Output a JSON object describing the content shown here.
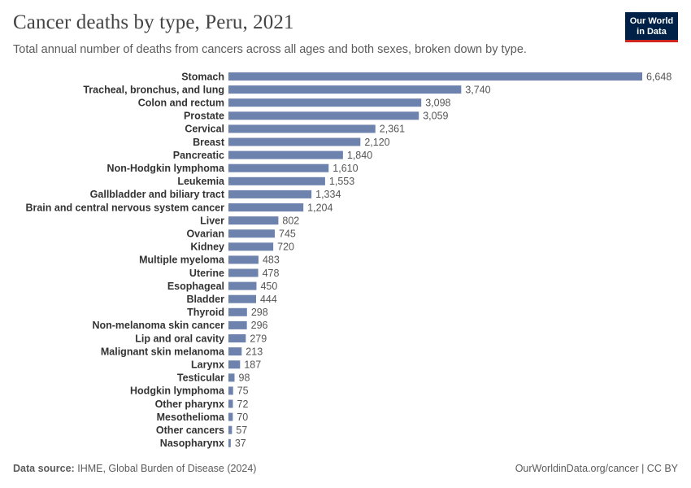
{
  "header": {
    "title": "Cancer deaths by type, Peru, 2021",
    "subtitle": "Total annual number of deaths from cancers across all ages and both sexes, broken down by type.",
    "logo_line1": "Our World",
    "logo_line2": "in Data"
  },
  "footer": {
    "source_label": "Data source:",
    "source_text": "IHME, Global Burden of Disease (2024)",
    "right_text": "OurWorldinData.org/cancer | CC BY"
  },
  "colors": {
    "bar": "#6d83ad",
    "label": "#333333",
    "value": "#555555"
  },
  "chart_data": {
    "type": "bar",
    "orientation": "horizontal",
    "title": "Cancer deaths by type, Peru, 2021",
    "categories": [
      "Stomach",
      "Tracheal, bronchus, and lung",
      "Colon and rectum",
      "Prostate",
      "Cervical",
      "Breast",
      "Pancreatic",
      "Non-Hodgkin lymphoma",
      "Leukemia",
      "Gallbladder and biliary tract",
      "Brain and central nervous system cancer",
      "Liver",
      "Ovarian",
      "Kidney",
      "Multiple myeloma",
      "Uterine",
      "Esophageal",
      "Bladder",
      "Thyroid",
      "Non-melanoma skin cancer",
      "Lip and oral cavity",
      "Malignant skin melanoma",
      "Larynx",
      "Testicular",
      "Hodgkin lymphoma",
      "Other pharynx",
      "Mesothelioma",
      "Other cancers",
      "Nasopharynx"
    ],
    "values": [
      6648,
      3740,
      3098,
      3059,
      2361,
      2120,
      1840,
      1610,
      1553,
      1334,
      1204,
      802,
      745,
      720,
      483,
      478,
      450,
      444,
      298,
      296,
      279,
      213,
      187,
      98,
      75,
      72,
      70,
      57,
      37
    ],
    "value_labels": [
      "6,648",
      "3,740",
      "3,098",
      "3,059",
      "2,361",
      "2,120",
      "1,840",
      "1,610",
      "1,553",
      "1,334",
      "1,204",
      "802",
      "745",
      "720",
      "483",
      "478",
      "450",
      "444",
      "298",
      "296",
      "279",
      "213",
      "187",
      "98",
      "75",
      "72",
      "70",
      "57",
      "37"
    ],
    "xlim": [
      0,
      6648
    ],
    "grid": false,
    "legend": "none"
  }
}
